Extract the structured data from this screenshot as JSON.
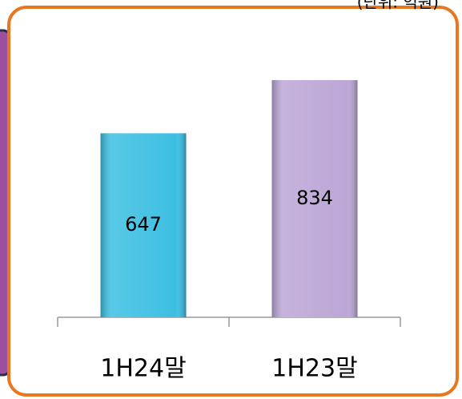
{
  "chart_data": {
    "type": "bar",
    "subtitle": "(단위: 억원)",
    "categories": [
      "1H24말",
      "1H23말"
    ],
    "values": [
      647,
      834
    ],
    "colors": [
      "#3cbfe2",
      "#bca6d6"
    ]
  }
}
